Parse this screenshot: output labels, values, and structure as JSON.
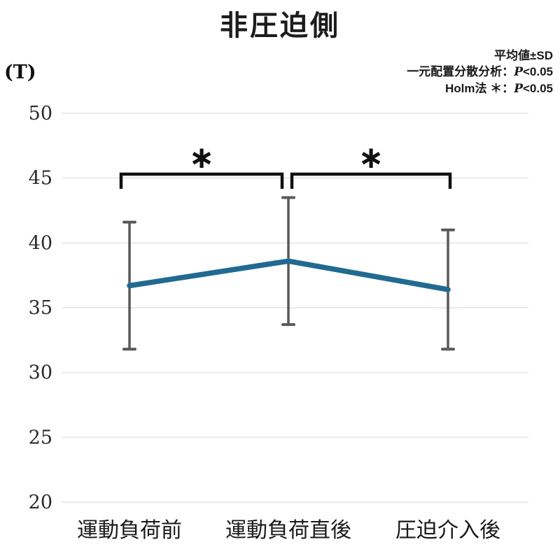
{
  "chart_data": {
    "type": "line",
    "title": "非圧迫側",
    "y_unit": "(T)",
    "categories": [
      "運動負荷前",
      "運動負荷直後",
      "圧迫介入後"
    ],
    "series": [
      {
        "name": "非圧迫側",
        "values": [
          36.7,
          38.6,
          36.4
        ],
        "sd": [
          4.9,
          4.9,
          4.6
        ]
      }
    ],
    "ylim": [
      20,
      50
    ],
    "ytick_step": 5,
    "yticks": [
      20,
      25,
      30,
      35,
      40,
      45,
      50
    ],
    "grid": true,
    "legend_position": "none",
    "line_color": "#216a91",
    "error_bar_color": "#58595b",
    "gridline_color": "#e9e9e9",
    "bracket_color": "#111111",
    "significance": [
      {
        "between": [
          0,
          1
        ],
        "symbol": "∗"
      },
      {
        "between": [
          1,
          2
        ],
        "symbol": "∗"
      }
    ]
  },
  "annotations": {
    "line1": {
      "text": "平均値±SD"
    },
    "line2": {
      "prefix": "一元配置分散分析：",
      "p": "P",
      "suffix": "<0.05"
    },
    "line3": {
      "prefix": "Holm法 ＊：",
      "p": "P",
      "suffix": "<0.05"
    }
  }
}
